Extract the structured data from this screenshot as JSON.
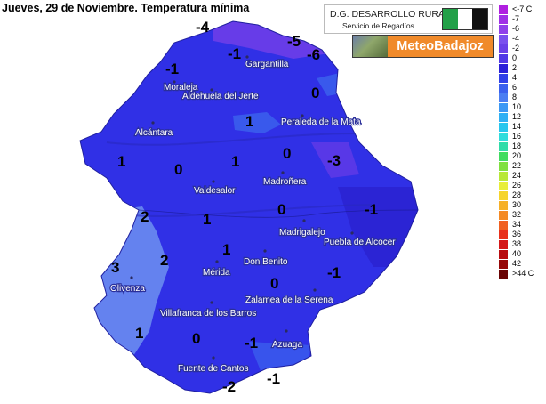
{
  "title": "Jueves, 29 de Noviembre.  Temperatura mínima",
  "logos": {
    "dg_line1": "D.G. DESARROLLO RURAL",
    "dg_line2": "Servicio de Regadíos",
    "meteo": "MeteoBadajoz"
  },
  "colors": {
    "region_base": "#3030e6",
    "region_dark": "#2a20cc",
    "region_light": "#3c64ee",
    "region_west": "#6a8cf0",
    "cold_purple": "#7a40e8",
    "city_text": "#ffffff"
  },
  "cities": [
    {
      "name": "Gargantilla"
    },
    {
      "name": "Moraleja"
    },
    {
      "name": "Aldehuela del Jerte"
    },
    {
      "name": "Peraleda de la Mata"
    },
    {
      "name": "Alcántara"
    },
    {
      "name": "Madroñera"
    },
    {
      "name": "Valdesalor"
    },
    {
      "name": "Madrigalejo"
    },
    {
      "name": "Puebla de Alcocer"
    },
    {
      "name": "Don Benito"
    },
    {
      "name": "Mérida"
    },
    {
      "name": "Olivenza"
    },
    {
      "name": "Zalamea de la Serena"
    },
    {
      "name": "Villafranca de los Barros"
    },
    {
      "name": "Azuaga"
    },
    {
      "name": "Fuente de Cantos"
    }
  ],
  "values": [
    "-4",
    "-5",
    "-6",
    "-1",
    "-1",
    "0",
    "1",
    "1",
    "0",
    "0",
    "-3",
    "0",
    "1",
    "-1",
    "2",
    "1",
    "2",
    "3",
    "1",
    "-1",
    "0",
    "1",
    "0",
    "-1",
    "-2",
    "-1"
  ],
  "legend": [
    {
      "label": "<-7 C",
      "color": "#b020e0"
    },
    {
      "label": "-7",
      "color": "#a030e6"
    },
    {
      "label": "-6",
      "color": "#9040ea"
    },
    {
      "label": "-4",
      "color": "#7a50ee"
    },
    {
      "label": "-2",
      "color": "#6a40e8"
    },
    {
      "label": "0",
      "color": "#5038e6"
    },
    {
      "label": "2",
      "color": "#2a20d8"
    },
    {
      "label": "4",
      "color": "#3040e8"
    },
    {
      "label": "6",
      "color": "#3a60ee"
    },
    {
      "label": "8",
      "color": "#4a7ef2"
    },
    {
      "label": "10",
      "color": "#3c98f4"
    },
    {
      "label": "12",
      "color": "#30b0f4"
    },
    {
      "label": "14",
      "color": "#28c6ee"
    },
    {
      "label": "16",
      "color": "#30dcdc"
    },
    {
      "label": "18",
      "color": "#30dca8"
    },
    {
      "label": "20",
      "color": "#40dc60"
    },
    {
      "label": "22",
      "color": "#80e040"
    },
    {
      "label": "24",
      "color": "#b8e838"
    },
    {
      "label": "26",
      "color": "#e8ee38"
    },
    {
      "label": "28",
      "color": "#f6d42c"
    },
    {
      "label": "30",
      "color": "#f6b028"
    },
    {
      "label": "32",
      "color": "#f48a24"
    },
    {
      "label": "34",
      "color": "#f06020"
    },
    {
      "label": "36",
      "color": "#e8301c"
    },
    {
      "label": "38",
      "color": "#d41818"
    },
    {
      "label": "40",
      "color": "#b80c10"
    },
    {
      "label": "42",
      "color": "#960808"
    },
    {
      "label": ">44 C",
      "color": "#6a0404"
    }
  ]
}
